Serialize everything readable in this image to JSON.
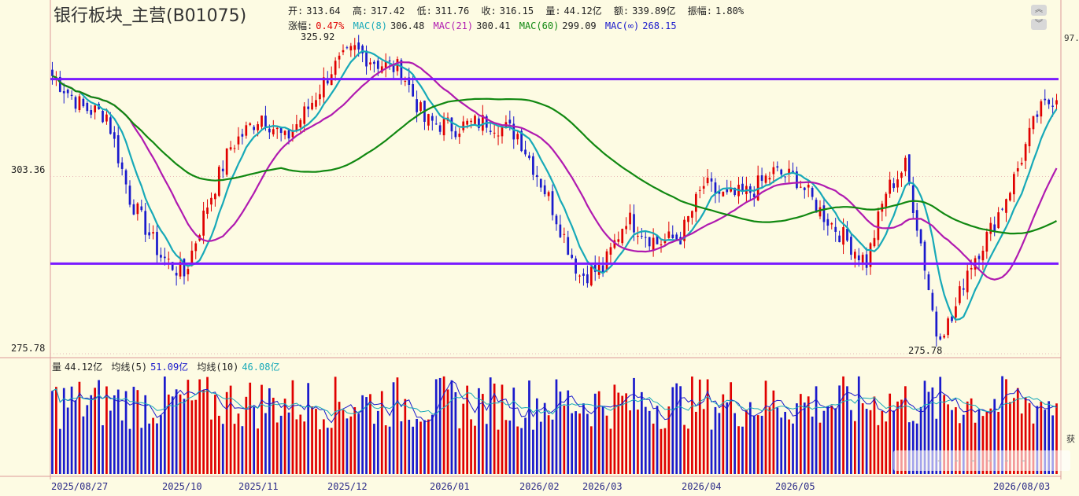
{
  "header": {
    "title": "银行板块_主营(B01075)",
    "stats": [
      {
        "label": "开:",
        "value": "313.64"
      },
      {
        "label": "高:",
        "value": "317.42"
      },
      {
        "label": "低:",
        "value": "311.76"
      },
      {
        "label": "收:",
        "value": "316.15"
      },
      {
        "label": "量:",
        "value": "44.12亿"
      },
      {
        "label": "额:",
        "value": "339.89亿"
      },
      {
        "label": "振幅:",
        "value": "1.80%"
      }
    ],
    "change_label": "涨幅:",
    "change_value": "0.47%",
    "mas": [
      {
        "label": "MAC(8)",
        "value": "306.48",
        "color": "#17a9b8"
      },
      {
        "label": "MAC(21)",
        "value": "300.41",
        "color": "#b01ab0"
      },
      {
        "label": "MAC(60)",
        "value": "299.09",
        "color": "#118811"
      },
      {
        "label": "MAC(∞)",
        "value": "268.15",
        "color": "#1a1acc"
      }
    ]
  },
  "volume_header": {
    "vol_label": "量",
    "vol_value": "44.12亿",
    "ma5_label": "均线(5)",
    "ma5_value": "51.09亿",
    "ma10_label": "均线(10)",
    "ma10_value": "46.08亿"
  },
  "price_axis": {
    "labels": [
      {
        "text": "303.36",
        "value": 303.36
      },
      {
        "text": "275.78",
        "value": 275.78
      }
    ],
    "min": 275.78,
    "max": 325.92
  },
  "annotations": {
    "high_label": "325.92",
    "low_label": "275.78"
  },
  "x_axis": [
    "2025/08/27",
    "2025/10",
    "2025/11",
    "2025/12",
    "2026/01",
    "2026/02",
    "2026/03",
    "2026/04",
    "2026/05",
    "2026/08/03"
  ],
  "edge_labels": {
    "top_right": "97.",
    "right_vol": "获"
  },
  "watermark": "- - - - - -",
  "colors": {
    "background": "#fdfbe3",
    "up": "#e00000",
    "down": "#1a1acc",
    "ma8": "#17a9b8",
    "ma21": "#b01ab0",
    "ma60": "#118811",
    "hline": "#7a1aff"
  },
  "chart_data": {
    "type": "candlestick",
    "horizontal_lines": [
      318.5,
      289.8
    ],
    "key_points": [
      {
        "date": "2025/08/27",
        "close": 317
      },
      {
        "date": "2025/09 end",
        "close": 284
      },
      {
        "date": "2025/11 mid",
        "close": 325.92
      },
      {
        "date": "2026/01 end",
        "close": 290
      },
      {
        "date": "2026/05 end",
        "close": 275.78
      },
      {
        "date": "2026/08/03",
        "close": 316.15
      }
    ],
    "last": {
      "open": 313.64,
      "high": 317.42,
      "low": 311.76,
      "close": 316.15,
      "volume": "44.12亿"
    }
  }
}
